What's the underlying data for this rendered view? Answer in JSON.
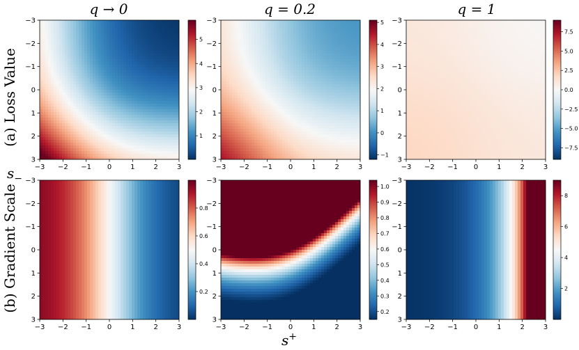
{
  "colormap": {
    "name": "RdBu",
    "stops": [
      "#67001f",
      "#b2182b",
      "#d6604d",
      "#f4a582",
      "#fddbc7",
      "#f7f7f7",
      "#d1e5f0",
      "#92c5de",
      "#4393c3",
      "#2166ac",
      "#053061"
    ]
  },
  "figure": {
    "xlabel": "s",
    "xlabel_sup": "+",
    "ylabel": "s",
    "ylabel_sub": "−"
  },
  "chart_data": [
    {
      "type": "heatmap",
      "row": 0,
      "col": 0,
      "title": "q → 0",
      "row_label": "(a) Loss Value",
      "xlim": [
        -3,
        3
      ],
      "ylim": [
        3,
        -3
      ],
      "x_ticks": [
        "−3",
        "−2",
        "−1",
        "0",
        "1",
        "2",
        "3"
      ],
      "y_ticks": [
        "−3",
        "−2",
        "−1",
        "0",
        "1",
        "2",
        "3"
      ],
      "function": "loss",
      "q": 0.0,
      "colorbar": {
        "vmin": 0.02,
        "vmax": 5.8,
        "ticks": [
          1,
          2,
          3,
          4,
          5
        ],
        "tick_labels": [
          "1",
          "2",
          "3",
          "4",
          "5"
        ]
      }
    },
    {
      "type": "heatmap",
      "row": 0,
      "col": 1,
      "title": "q = 0.2",
      "row_label": "",
      "xlim": [
        -3,
        3
      ],
      "ylim": [
        3,
        -3
      ],
      "x_ticks": [
        "−3",
        "−2",
        "−1",
        "0",
        "1",
        "2",
        "3"
      ],
      "y_ticks": [
        "−3",
        "−2",
        "−1",
        "0",
        "1",
        "2",
        "3"
      ],
      "function": "loss",
      "q": 0.2,
      "colorbar": {
        "vmin": -1.2,
        "vmax": 5.1,
        "ticks": [
          -1,
          0,
          1,
          2,
          3,
          4,
          5
        ],
        "tick_labels": [
          "−1",
          "0",
          "1",
          "2",
          "3",
          "4",
          "5"
        ]
      }
    },
    {
      "type": "heatmap",
      "row": 0,
      "col": 2,
      "title": "q = 1",
      "row_label": "",
      "xlim": [
        -3,
        3
      ],
      "ylim": [
        3,
        -3
      ],
      "x_ticks": [
        "−3",
        "−2",
        "−1",
        "0",
        "1",
        "2",
        "3"
      ],
      "y_ticks": [
        "−3",
        "−2",
        "−1",
        "0",
        "1",
        "2",
        "3"
      ],
      "function": "loss",
      "q": 1.0,
      "colorbar": {
        "vmin": -9.0,
        "vmax": 9.0,
        "ticks": [
          -7.5,
          -5,
          -2.5,
          0,
          2.5,
          5,
          7.5
        ],
        "tick_labels": [
          "−7.5",
          "−5.0",
          "−2.5",
          "0.0",
          "2.5",
          "5.0",
          "7.5"
        ]
      }
    },
    {
      "type": "heatmap",
      "row": 1,
      "col": 0,
      "title": "",
      "row_label": "(b) Gradient Scale",
      "xlim": [
        -3,
        3
      ],
      "ylim": [
        3,
        -3
      ],
      "x_ticks": [
        "−3",
        "−2",
        "−1",
        "0",
        "1",
        "2",
        "3"
      ],
      "y_ticks": [
        "−3",
        "−2",
        "−1",
        "0",
        "1",
        "2",
        "3"
      ],
      "function": "grad",
      "q": 0.0,
      "colorbar": {
        "vmin": 0.0,
        "vmax": 1.0,
        "ticks": [
          0.2,
          0.4,
          0.6,
          0.8
        ],
        "tick_labels": [
          "0.2",
          "0.4",
          "0.6",
          "0.8"
        ]
      }
    },
    {
      "type": "heatmap",
      "row": 1,
      "col": 1,
      "title": "",
      "row_label": "",
      "xlim": [
        -3,
        3
      ],
      "ylim": [
        3,
        -3
      ],
      "x_ticks": [
        "−3",
        "−2",
        "−1",
        "0",
        "1",
        "2",
        "3"
      ],
      "y_ticks": [
        "−3",
        "−2",
        "−1",
        "0",
        "1",
        "2",
        "3"
      ],
      "function": "grad",
      "q": 0.2,
      "colorbar": {
        "vmin": 0.15,
        "vmax": 1.04,
        "ticks": [
          0.2,
          0.3,
          0.4,
          0.5,
          0.6,
          0.7,
          0.8,
          0.9,
          1.0
        ],
        "tick_labels": [
          "0.2",
          "0.3",
          "0.4",
          "0.5",
          "0.6",
          "0.7",
          "0.8",
          "0.9",
          "1.0"
        ]
      }
    },
    {
      "type": "heatmap",
      "row": 1,
      "col": 2,
      "title": "",
      "row_label": "",
      "xlim": [
        -3,
        3
      ],
      "ylim": [
        3,
        -3
      ],
      "x_ticks": [
        "−3",
        "−2",
        "−1",
        "0",
        "1",
        "2",
        "3"
      ],
      "y_ticks": [
        "−3",
        "−2",
        "−1",
        "0",
        "1",
        "2",
        "3"
      ],
      "function": "grad",
      "q": 1.0,
      "colorbar": {
        "vmin": 0.0,
        "vmax": 9.0,
        "ticks": [
          2,
          4,
          6,
          8
        ],
        "tick_labels": [
          "2",
          "4",
          "6",
          "8"
        ]
      }
    }
  ]
}
